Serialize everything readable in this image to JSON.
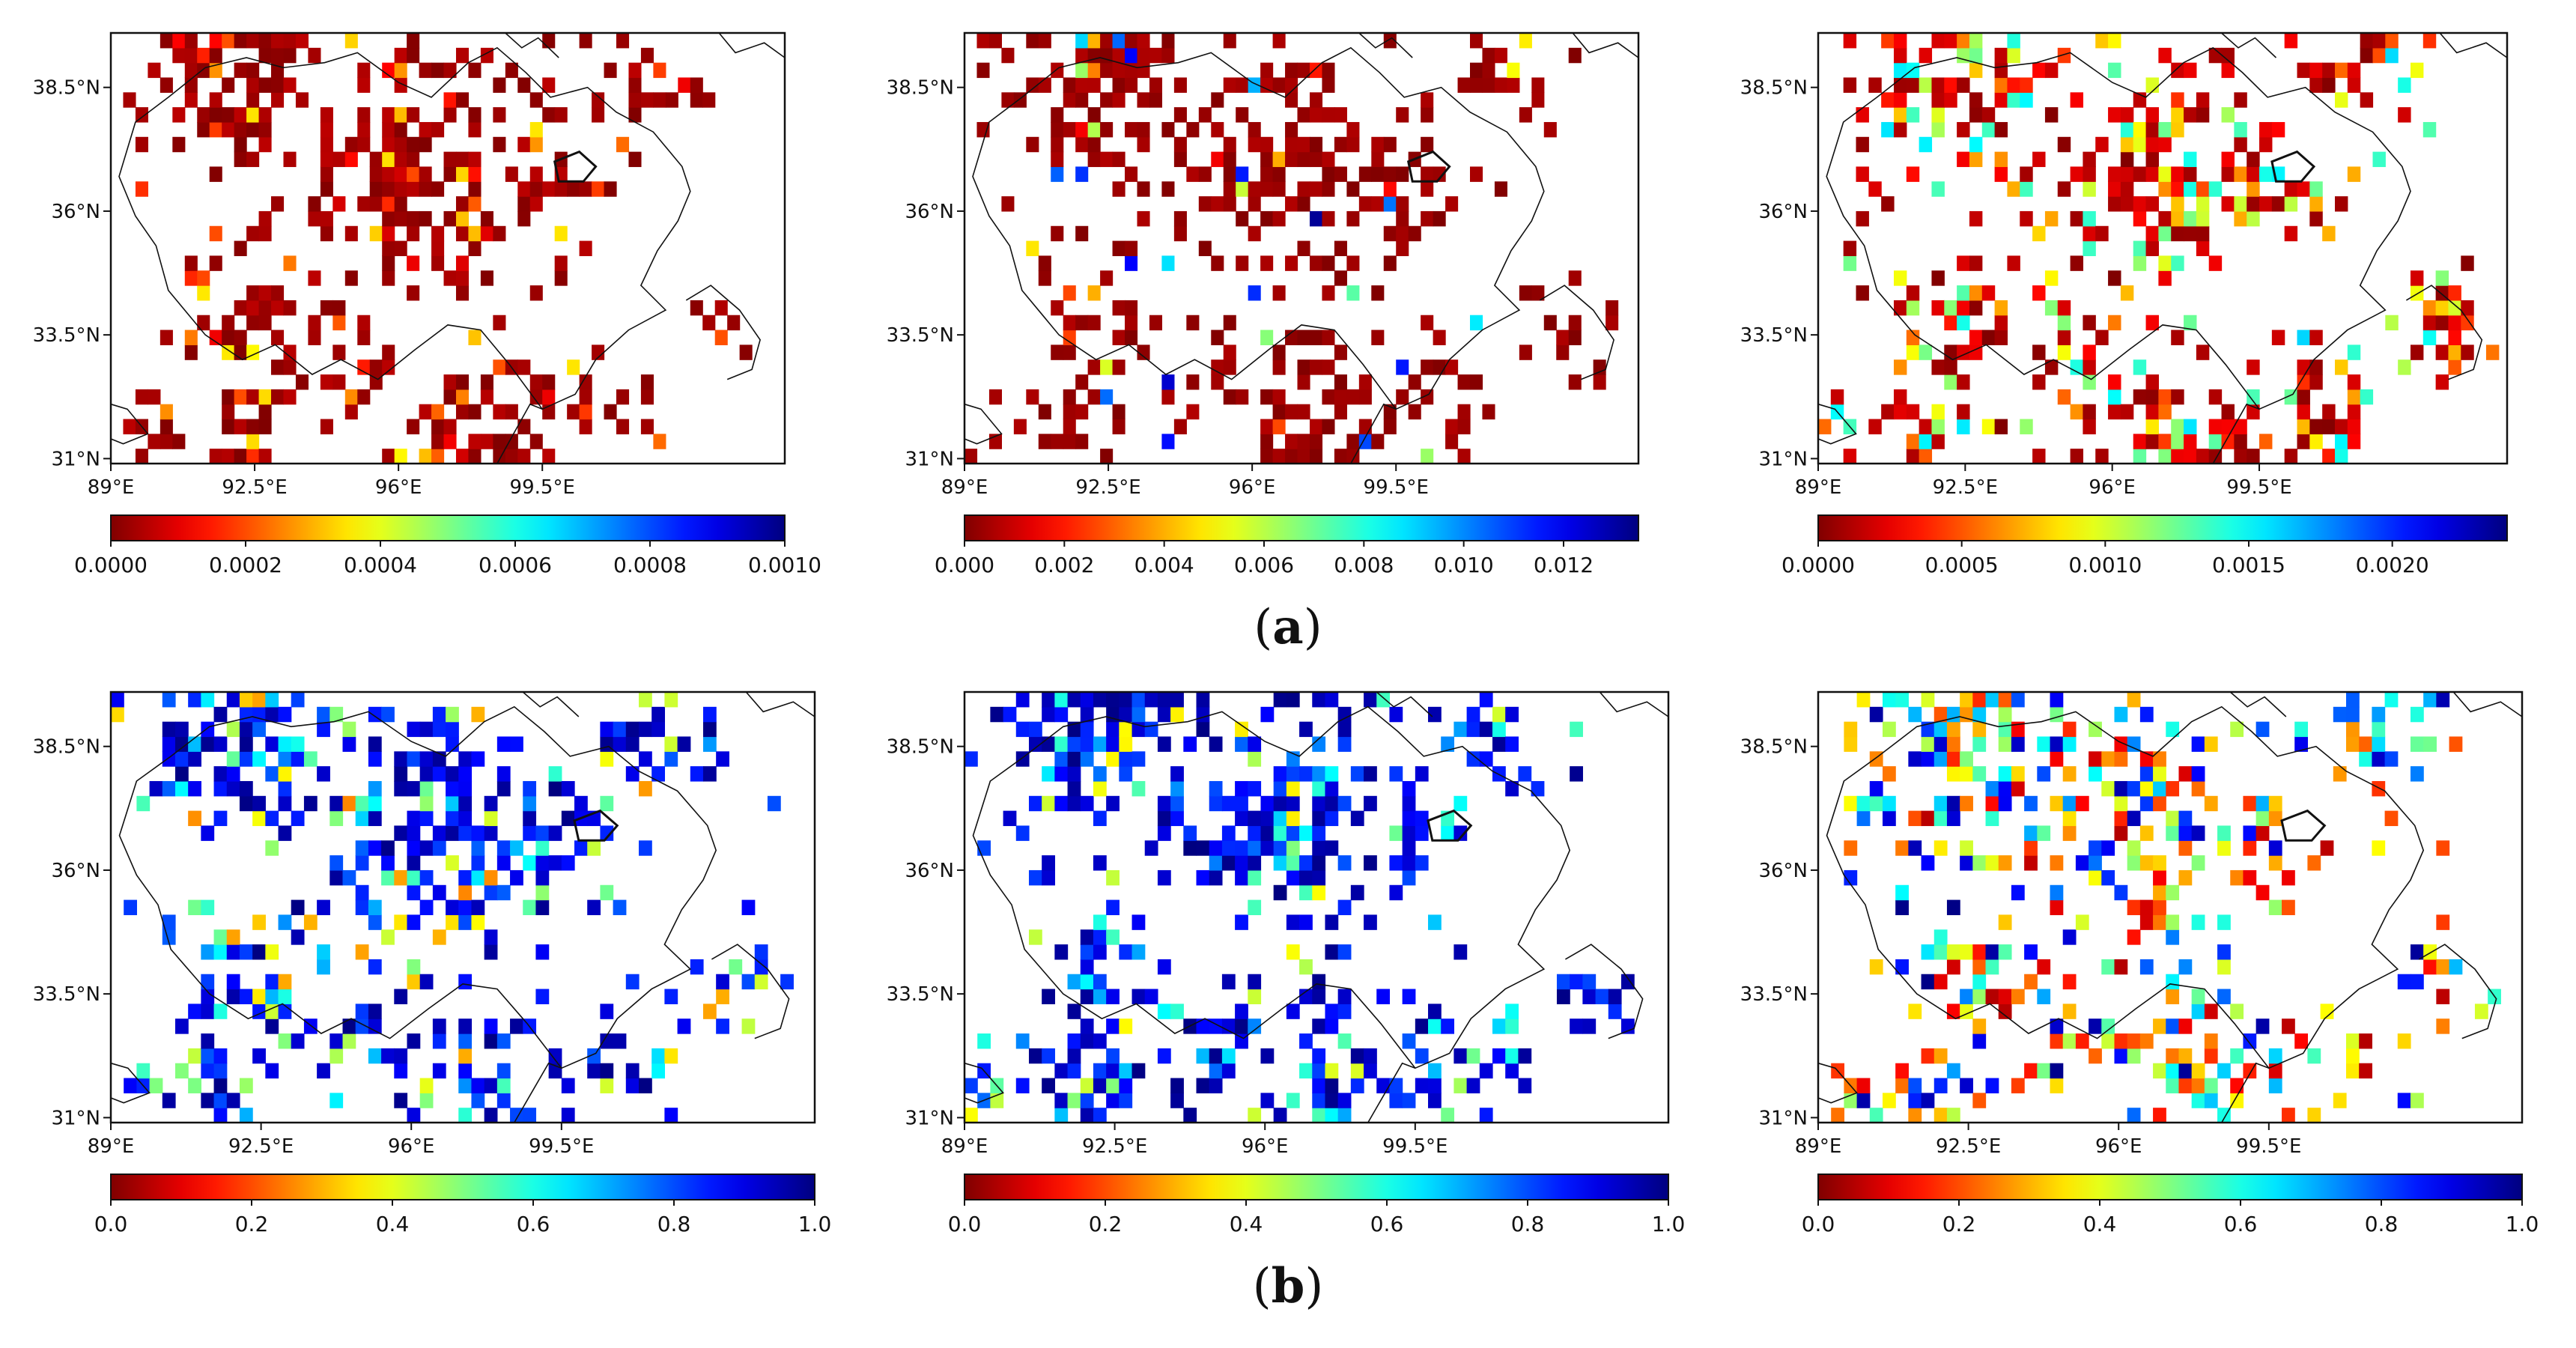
{
  "figure": {
    "rows": [
      {
        "label_open": "(",
        "label_letter": "a",
        "label_close": ")"
      },
      {
        "label_open": "(",
        "label_letter": "b",
        "label_close": ")"
      }
    ]
  },
  "chart_data": [
    {
      "type": "heatmap",
      "row": "a",
      "col": 1,
      "title": "",
      "xlabel": "",
      "ylabel": "",
      "xlim": [
        89,
        105.4
      ],
      "ylim": [
        30.9,
        39.6
      ],
      "x_ticks": [
        "89°E",
        "92.5°E",
        "96°E",
        "99.5°E"
      ],
      "y_ticks": [
        "38.5°N",
        "36°N",
        "33.5°N",
        "31°N"
      ],
      "colormap": "jet_r",
      "colorbar": {
        "min": 0.0,
        "max": 0.001,
        "ticks": [
          "0.0000",
          "0.0002",
          "0.0004",
          "0.0006",
          "0.0008",
          "0.0010"
        ]
      }
    },
    {
      "type": "heatmap",
      "row": "a",
      "col": 2,
      "title": "",
      "xlabel": "",
      "ylabel": "",
      "xlim": [
        89,
        105.4
      ],
      "ylim": [
        30.9,
        39.6
      ],
      "x_ticks": [
        "89°E",
        "92.5°E",
        "96°E",
        "99.5°E"
      ],
      "y_ticks": [
        "38.5°N",
        "36°N",
        "33.5°N",
        "31°N"
      ],
      "colormap": "jet_r",
      "colorbar": {
        "min": 0.0,
        "max": 0.0135,
        "ticks": [
          "0.000",
          "0.002",
          "0.004",
          "0.006",
          "0.008",
          "0.010",
          "0.012"
        ]
      }
    },
    {
      "type": "heatmap",
      "row": "a",
      "col": 3,
      "title": "",
      "xlabel": "",
      "ylabel": "",
      "xlim": [
        89,
        105.4
      ],
      "ylim": [
        30.9,
        39.6
      ],
      "x_ticks": [
        "89°E",
        "92.5°E",
        "96°E",
        "99.5°E"
      ],
      "y_ticks": [
        "38.5°N",
        "36°N",
        "33.5°N",
        "31°N"
      ],
      "colormap": "jet_r",
      "colorbar": {
        "min": 0.0,
        "max": 0.0024,
        "ticks": [
          "0.0000",
          "0.0005",
          "0.0010",
          "0.0015",
          "0.0020"
        ]
      }
    },
    {
      "type": "heatmap",
      "row": "b",
      "col": 1,
      "title": "",
      "xlabel": "",
      "ylabel": "",
      "xlim": [
        89,
        105.4
      ],
      "ylim": [
        30.9,
        39.6
      ],
      "x_ticks": [
        "89°E",
        "92.5°E",
        "96°E",
        "99.5°E"
      ],
      "y_ticks": [
        "38.5°N",
        "36°N",
        "33.5°N",
        "31°N"
      ],
      "colormap": "jet_r",
      "colorbar": {
        "min": 0.0,
        "max": 1.0,
        "ticks": [
          "0.0",
          "0.2",
          "0.4",
          "0.6",
          "0.8",
          "1.0"
        ]
      }
    },
    {
      "type": "heatmap",
      "row": "b",
      "col": 2,
      "title": "",
      "xlabel": "",
      "ylabel": "",
      "xlim": [
        89,
        105.4
      ],
      "ylim": [
        30.9,
        39.6
      ],
      "x_ticks": [
        "89°E",
        "92.5°E",
        "96°E",
        "99.5°E"
      ],
      "y_ticks": [
        "38.5°N",
        "36°N",
        "33.5°N",
        "31°N"
      ],
      "colormap": "jet_r",
      "colorbar": {
        "min": 0.0,
        "max": 1.0,
        "ticks": [
          "0.0",
          "0.2",
          "0.4",
          "0.6",
          "0.8",
          "1.0"
        ]
      }
    },
    {
      "type": "heatmap",
      "row": "b",
      "col": 3,
      "title": "",
      "xlabel": "",
      "ylabel": "",
      "xlim": [
        89,
        105.4
      ],
      "ylim": [
        30.9,
        39.6
      ],
      "x_ticks": [
        "89°E",
        "92.5°E",
        "96°E",
        "99.5°E"
      ],
      "y_ticks": [
        "38.5°N",
        "36°N",
        "33.5°N",
        "31°N"
      ],
      "colormap": "jet_r",
      "colorbar": {
        "min": 0.0,
        "max": 1.0,
        "ticks": [
          "0.0",
          "0.2",
          "0.4",
          "0.6",
          "0.8",
          "1.0"
        ]
      }
    }
  ]
}
